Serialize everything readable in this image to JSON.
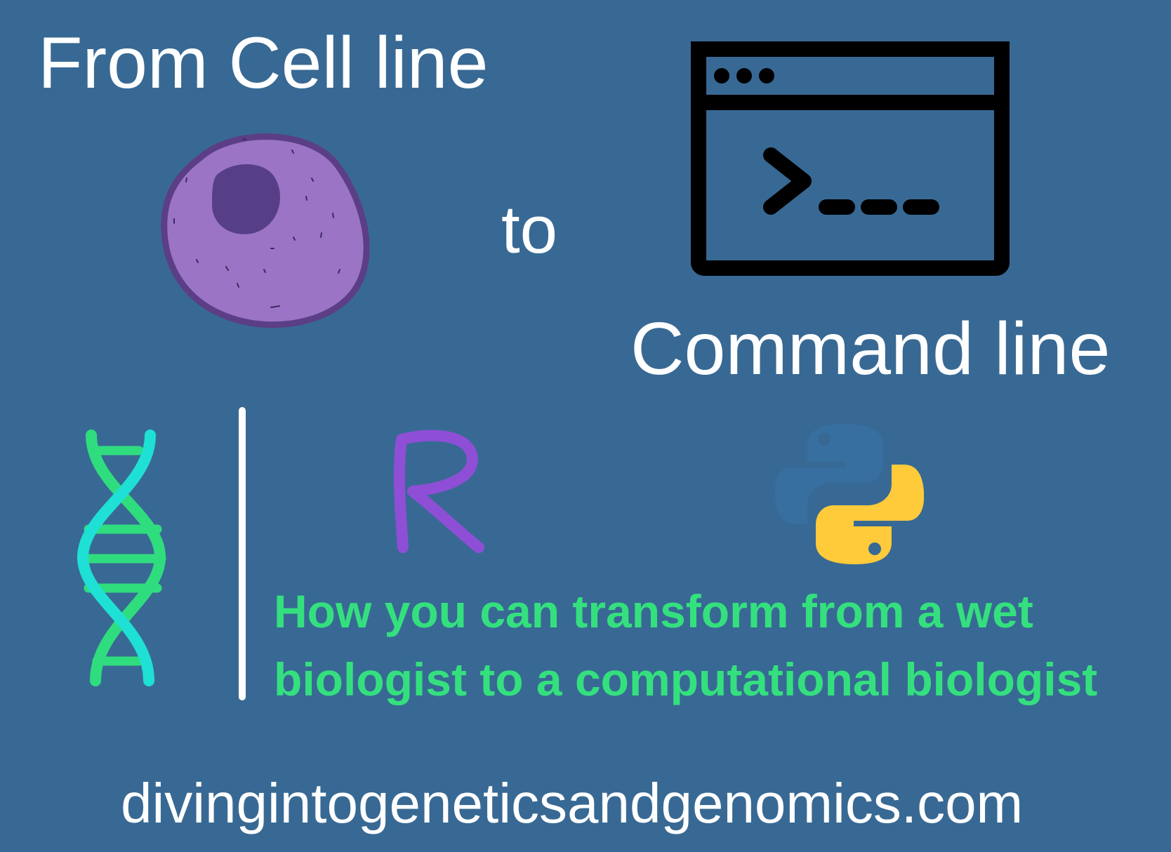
{
  "headline": {
    "from_text": "From Cell line",
    "to_text": "to",
    "command_text": "Command line"
  },
  "subtitle": {
    "line1": "How you can transform from a wet",
    "line2": "biologist to a computational biologist"
  },
  "website": "divingintogeneticsandgenomics.com",
  "icons": {
    "cell": "cell-icon",
    "terminal": "terminal-window-icon",
    "dna": "dna-helix-icon",
    "r": "r-language-icon",
    "python": "python-logo-icon"
  },
  "colors": {
    "background": "#386994",
    "text": "#ffffff",
    "subtitle": "#34e07e",
    "cell_fill": "#9b74c6",
    "cell_border": "#5b3e86",
    "nucleus": "#573f88",
    "r_letter": "#8e4fd6",
    "python_blue": "#366fa0",
    "python_yellow": "#ffcb3a",
    "dna_cyan": "#1fe0d4",
    "dna_green": "#2fdd7e"
  }
}
